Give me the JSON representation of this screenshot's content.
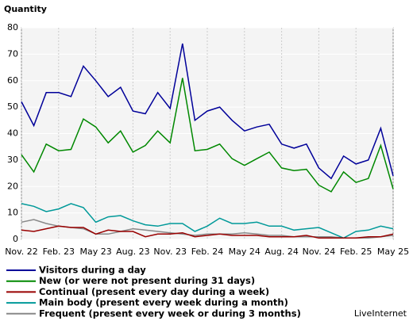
{
  "chart_data": {
    "type": "line",
    "y_axis_label": "Quantity",
    "credit": "LiveInternet",
    "categories": [
      "Nov. 22",
      null,
      null,
      "Feb. 23",
      null,
      null,
      "May 23",
      null,
      null,
      "Aug. 23",
      null,
      null,
      "Nov. 23",
      null,
      null,
      "Feb. 24",
      null,
      null,
      "May 24",
      null,
      null,
      "Aug. 24",
      null,
      null,
      "Nov. 24",
      null,
      null,
      "Feb. 25",
      null,
      null,
      "May 25"
    ],
    "ylim": [
      0,
      80
    ],
    "yticks": [
      0,
      10,
      20,
      30,
      40,
      50,
      60,
      70,
      80
    ],
    "grid": true,
    "legend": "bottom-left",
    "series": [
      {
        "name": "Visitors during a day",
        "color": "#000099",
        "values": [
          52,
          43,
          55.5,
          55.5,
          54,
          65.5,
          60,
          54,
          57.5,
          48.5,
          47.5,
          55.5,
          49.5,
          74,
          45,
          48.5,
          50,
          45,
          41,
          42.5,
          43.5,
          36,
          34.5,
          36,
          27,
          23,
          31.5,
          28.5,
          30,
          42,
          24
        ]
      },
      {
        "name": "New (or were not present during 31 days)",
        "color": "#008800",
        "values": [
          32,
          25.5,
          36,
          33.5,
          34,
          45.5,
          42.5,
          36.5,
          41,
          33,
          35.5,
          41,
          36.5,
          61,
          33.5,
          34,
          36,
          30.5,
          28,
          30.5,
          33,
          27,
          26,
          26.5,
          20.5,
          18,
          25.5,
          21.5,
          23,
          35.5,
          19
        ]
      },
      {
        "name": "Continual (present every day during a week)",
        "color": "#990000",
        "values": [
          3.5,
          3,
          4,
          5,
          4.5,
          4.5,
          2,
          3.5,
          3,
          3,
          1,
          2,
          2,
          2.5,
          1,
          1.5,
          2,
          1.5,
          1.5,
          1.5,
          1,
          1,
          1,
          1.5,
          0.5,
          0.5,
          0.5,
          0.5,
          1,
          1,
          2
        ]
      },
      {
        "name": "Main body (present every week during a month)",
        "color": "#009999",
        "values": [
          13.5,
          12.5,
          10.5,
          11.5,
          13.5,
          12,
          6.5,
          8.5,
          9,
          7,
          5.5,
          5,
          6,
          6,
          3,
          5,
          8,
          6,
          6,
          6.5,
          5,
          5,
          3.5,
          4,
          4.5,
          2.5,
          0.5,
          3,
          3.5,
          5,
          4
        ]
      },
      {
        "name": "Frequent (present every week or during 3 months)",
        "color": "#888888",
        "values": [
          6.5,
          7.5,
          6,
          5,
          4.5,
          4,
          2,
          2,
          3,
          4,
          3.5,
          3,
          2.5,
          2,
          1.5,
          2,
          2,
          2,
          2.5,
          2,
          1.5,
          1.5,
          1,
          1,
          1,
          1,
          0.5,
          0.5,
          0.5,
          1,
          1.5
        ]
      }
    ]
  }
}
